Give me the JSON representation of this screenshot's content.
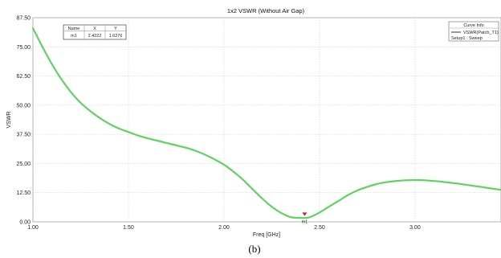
{
  "chart_data": {
    "type": "line",
    "title": "1x2 VSWR (Without Air Gap)",
    "xlabel": "Freq [GHz]",
    "ylabel": "VSWR",
    "xlim": [
      1.0,
      3.45
    ],
    "ylim": [
      0,
      87.5
    ],
    "x_ticks": [
      1.0,
      1.5,
      2.0,
      2.5,
      3.0
    ],
    "x_tick_labels": [
      "1.00",
      "1.50",
      "2.00",
      "2.50",
      "3.00"
    ],
    "y_ticks": [
      0,
      12.5,
      25,
      37.5,
      50,
      62.5,
      75,
      87.5
    ],
    "y_tick_labels": [
      "0.00",
      "12.50",
      "25.00",
      "37.50",
      "50.00",
      "62.50",
      "75.00",
      "87.50"
    ],
    "grid": true,
    "legend_position": "top-right",
    "series": [
      {
        "name": "VSWR(Patch_T1)",
        "color": "#5fd35f",
        "x": [
          1.0,
          1.05,
          1.1,
          1.15,
          1.2,
          1.25,
          1.3,
          1.35,
          1.4,
          1.45,
          1.5,
          1.55,
          1.6,
          1.65,
          1.7,
          1.75,
          1.8,
          1.85,
          1.9,
          1.95,
          2.0,
          2.05,
          2.1,
          2.15,
          2.2,
          2.25,
          2.3,
          2.35,
          2.4,
          2.42,
          2.45,
          2.5,
          2.55,
          2.6,
          2.65,
          2.7,
          2.75,
          2.8,
          2.85,
          2.9,
          2.95,
          3.0,
          3.05,
          3.1,
          3.15,
          3.2,
          3.25,
          3.3,
          3.35,
          3.4,
          3.45
        ],
        "y": [
          83.0,
          75.0,
          67.5,
          61.0,
          55.5,
          51.0,
          47.5,
          44.5,
          42.0,
          40.0,
          38.5,
          37.0,
          35.8,
          34.8,
          33.8,
          32.8,
          31.8,
          30.5,
          28.8,
          26.8,
          24.5,
          21.5,
          18.0,
          14.0,
          10.0,
          6.5,
          3.8,
          2.0,
          1.7,
          1.6276,
          2.0,
          4.0,
          6.5,
          9.0,
          11.5,
          13.5,
          15.0,
          16.2,
          17.0,
          17.5,
          17.8,
          17.9,
          17.8,
          17.5,
          17.1,
          16.6,
          16.1,
          15.5,
          14.9,
          14.3,
          13.7
        ]
      }
    ],
    "marker": {
      "name": "m1",
      "x": 2.4222,
      "y": 1.6276,
      "x_label": "2.4222",
      "y_label": "1.6276"
    }
  },
  "marker_table": {
    "headers": [
      "Name",
      "X",
      "Y"
    ],
    "row": [
      "m1",
      "2.4222",
      "1.6276"
    ]
  },
  "legend": {
    "header": "Curve Info",
    "entries": [
      "VSWR(Patch_T1)",
      "Setup1 : Sweep"
    ]
  },
  "caption": "(b)"
}
